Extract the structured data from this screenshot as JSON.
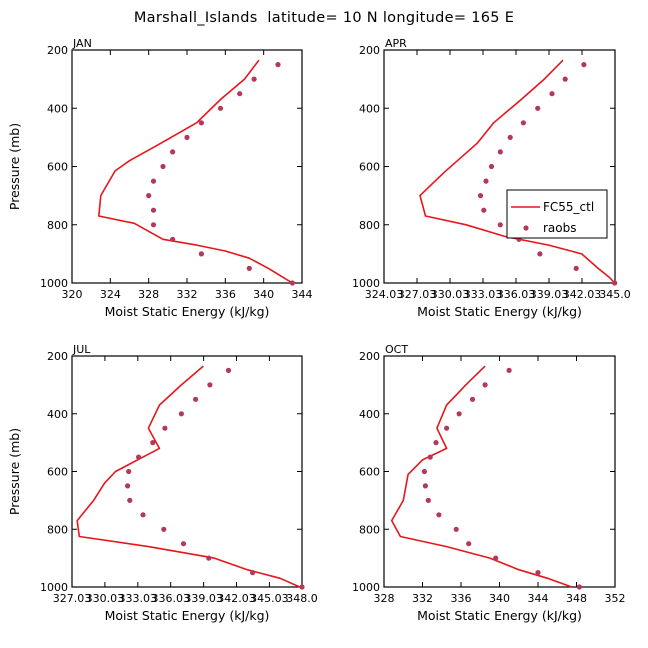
{
  "title": "Marshall_Islands  latitude= 10 N longitude= 165 E",
  "colors": {
    "model": "#e8151b",
    "obs": "#b3395a",
    "axis": "#000000"
  },
  "legend": {
    "model_label": "FC55_ctl",
    "obs_label": "raobs",
    "panel": "APR"
  },
  "chart_data": [
    {
      "type": "line",
      "panel": "JAN",
      "xlabel": "Moist Static Energy (kJ/kg)",
      "ylabel": "Pressure (mb)",
      "xlim": [
        320,
        344
      ],
      "ylim": [
        1000,
        200
      ],
      "xticks": [
        320,
        324,
        328,
        332,
        336,
        340,
        344
      ],
      "xtick_labels": [
        "320",
        "324",
        "328",
        "332",
        "336",
        "340",
        "344"
      ],
      "yticks": [
        200,
        400,
        600,
        800,
        1000
      ],
      "ytick_labels": [
        "200",
        "400",
        "600",
        "800",
        "1000"
      ],
      "series": [
        {
          "name": "FC55_ctl",
          "style": "line",
          "points": [
            [
              339.5,
              235
            ],
            [
              338,
              300
            ],
            [
              335.5,
              370
            ],
            [
              333,
              450
            ],
            [
              329,
              525
            ],
            [
              326,
              580
            ],
            [
              324.5,
              615
            ],
            [
              323,
              700
            ],
            [
              322.8,
              770
            ],
            [
              326.5,
              795
            ],
            [
              329.5,
              850
            ],
            [
              333,
              870
            ],
            [
              336,
              890
            ],
            [
              338.5,
              915
            ],
            [
              340.5,
              950
            ],
            [
              342,
              980
            ],
            [
              343,
              1000
            ]
          ]
        },
        {
          "name": "raobs",
          "style": "markers",
          "points": [
            [
              341.5,
              250
            ],
            [
              339,
              300
            ],
            [
              337.5,
              350
            ],
            [
              335.5,
              400
            ],
            [
              333.5,
              450
            ],
            [
              332,
              500
            ],
            [
              330.5,
              550
            ],
            [
              329.5,
              600
            ],
            [
              328.5,
              650
            ],
            [
              328,
              700
            ],
            [
              328.5,
              750
            ],
            [
              328.5,
              800
            ],
            [
              330.5,
              850
            ],
            [
              333.5,
              900
            ],
            [
              338.5,
              950
            ],
            [
              343,
              1000
            ]
          ]
        }
      ]
    },
    {
      "type": "line",
      "panel": "APR",
      "xlabel": "Moist Static Energy (kJ/kg)",
      "ylabel": "",
      "xlim": [
        324.03,
        345.03
      ],
      "ylim": [
        1000,
        200
      ],
      "xticks": [
        324.03,
        327.03,
        330.03,
        333.03,
        336.03,
        339.03,
        342.03,
        345.03
      ],
      "xtick_labels": [
        "324.03",
        "327.03",
        "330.03",
        "333.03",
        "336.03",
        "339.03",
        "342.03",
        "345.0"
      ],
      "yticks": [
        200,
        400,
        600,
        800,
        1000
      ],
      "ytick_labels": [
        "200",
        "400",
        "600",
        "800",
        "1000"
      ],
      "series": [
        {
          "name": "FC55_ctl",
          "style": "line",
          "points": [
            [
              340.3,
              235
            ],
            [
              338.6,
              300
            ],
            [
              336.5,
              370
            ],
            [
              334,
              450
            ],
            [
              332.5,
              520
            ],
            [
              331,
              570
            ],
            [
              329.5,
              620
            ],
            [
              327.3,
              700
            ],
            [
              327.8,
              770
            ],
            [
              331.5,
              800
            ],
            [
              335,
              840
            ],
            [
              339,
              870
            ],
            [
              342,
              900
            ],
            [
              343.5,
              950
            ],
            [
              344.5,
              980
            ],
            [
              345,
              1000
            ]
          ]
        },
        {
          "name": "raobs",
          "style": "markers",
          "points": [
            [
              342.2,
              250
            ],
            [
              340.5,
              300
            ],
            [
              339.3,
              350
            ],
            [
              338,
              400
            ],
            [
              336.7,
              450
            ],
            [
              335.5,
              500
            ],
            [
              334.6,
              550
            ],
            [
              333.8,
              600
            ],
            [
              333.3,
              650
            ],
            [
              332.8,
              700
            ],
            [
              333.1,
              750
            ],
            [
              334.6,
              800
            ],
            [
              336.3,
              850
            ],
            [
              338.2,
              900
            ],
            [
              341.5,
              950
            ],
            [
              345,
              1000
            ]
          ]
        }
      ]
    },
    {
      "type": "line",
      "panel": "JUL",
      "xlabel": "Moist Static Energy (kJ/kg)",
      "ylabel": "Pressure (mb)",
      "xlim": [
        327.03,
        348.0
      ],
      "ylim": [
        1000,
        200
      ],
      "xticks": [
        327.03,
        330.03,
        333.03,
        336.03,
        339.03,
        342.03,
        345.03,
        348.0
      ],
      "xtick_labels": [
        "327.03",
        "330.03",
        "333.03",
        "336.03",
        "339.03",
        "342.03",
        "345.03",
        "348.0"
      ],
      "yticks": [
        200,
        400,
        600,
        800,
        1000
      ],
      "ytick_labels": [
        "200",
        "400",
        "600",
        "800",
        "1000"
      ],
      "series": [
        {
          "name": "FC55_ctl",
          "style": "line",
          "points": [
            [
              339,
              235
            ],
            [
              337,
              300
            ],
            [
              335,
              370
            ],
            [
              334,
              450
            ],
            [
              335,
              520
            ],
            [
              333,
              560
            ],
            [
              331,
              600
            ],
            [
              330,
              640
            ],
            [
              329,
              700
            ],
            [
              327.5,
              770
            ],
            [
              327.7,
              825
            ],
            [
              334,
              860
            ],
            [
              340,
              900
            ],
            [
              343,
              940
            ],
            [
              346,
              970
            ],
            [
              347.8,
              1000
            ]
          ]
        },
        {
          "name": "raobs",
          "style": "markers",
          "points": [
            [
              341.3,
              250
            ],
            [
              339.6,
              300
            ],
            [
              338.3,
              350
            ],
            [
              337,
              400
            ],
            [
              335.5,
              450
            ],
            [
              334.4,
              500
            ],
            [
              333.1,
              550
            ],
            [
              332.2,
              600
            ],
            [
              332.1,
              650
            ],
            [
              332.3,
              700
            ],
            [
              333.5,
              750
            ],
            [
              335.4,
              800
            ],
            [
              337.2,
              850
            ],
            [
              339.5,
              900
            ],
            [
              343.5,
              950
            ],
            [
              348,
              1000
            ]
          ]
        }
      ]
    },
    {
      "type": "line",
      "panel": "OCT",
      "xlabel": "Moist Static Energy (kJ/kg)",
      "ylabel": "",
      "xlim": [
        328,
        352
      ],
      "ylim": [
        1000,
        200
      ],
      "xticks": [
        328,
        332,
        336,
        340,
        344,
        348,
        352
      ],
      "xtick_labels": [
        "328",
        "332",
        "336",
        "340",
        "344",
        "348",
        "352"
      ],
      "yticks": [
        200,
        400,
        600,
        800,
        1000
      ],
      "ytick_labels": [
        "200",
        "400",
        "600",
        "800",
        "1000"
      ],
      "series": [
        {
          "name": "FC55_ctl",
          "style": "line",
          "points": [
            [
              338.5,
              235
            ],
            [
              336.5,
              300
            ],
            [
              334.5,
              370
            ],
            [
              333.5,
              450
            ],
            [
              334.5,
              520
            ],
            [
              332,
              560
            ],
            [
              330.5,
              610
            ],
            [
              330,
              700
            ],
            [
              328.8,
              770
            ],
            [
              329.7,
              825
            ],
            [
              334.5,
              860
            ],
            [
              339,
              900
            ],
            [
              342,
              940
            ],
            [
              345,
              970
            ],
            [
              347.5,
              1000
            ]
          ]
        },
        {
          "name": "raobs",
          "style": "markers",
          "points": [
            [
              341,
              250
            ],
            [
              338.5,
              300
            ],
            [
              337.2,
              350
            ],
            [
              335.8,
              400
            ],
            [
              334.5,
              450
            ],
            [
              333.4,
              500
            ],
            [
              332.8,
              550
            ],
            [
              332.2,
              600
            ],
            [
              332.3,
              650
            ],
            [
              332.6,
              700
            ],
            [
              333.7,
              750
            ],
            [
              335.5,
              800
            ],
            [
              336.8,
              850
            ],
            [
              339.6,
              900
            ],
            [
              344,
              950
            ],
            [
              348.3,
              1000
            ]
          ]
        }
      ]
    }
  ]
}
